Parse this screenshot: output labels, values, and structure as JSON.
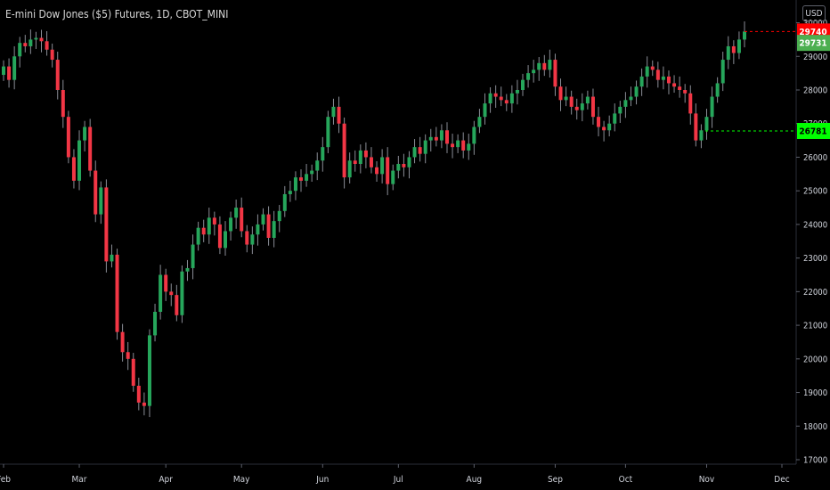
{
  "chart": {
    "title": "E-mini Dow Jones ($5) Futures, 1D, CBOT_MINI",
    "currency_button": "USD"
  },
  "colors": {
    "background": "#000000",
    "up_candle": "#26a65b",
    "down_candle": "#f23645",
    "last_price_badge": "#ff0000",
    "high_badge": "#4caf50",
    "marker_badge": "#00ff00",
    "axis_text": "#d1d4dc"
  },
  "chart_data": {
    "type": "candlestick",
    "title": "E-mini Dow Jones ($5) Futures, 1D, CBOT_MINI",
    "xlabel": "",
    "ylabel": "",
    "ylim": [
      17000,
      30200
    ],
    "y_ticks": [
      17000,
      18000,
      19000,
      20000,
      21000,
      22000,
      23000,
      24000,
      25000,
      26000,
      27000,
      28000,
      29000,
      30000
    ],
    "x_ticks": [
      "Feb",
      "Mar",
      "Apr",
      "May",
      "Jun",
      "Jul",
      "Aug",
      "Sep",
      "Oct",
      "Nov",
      "Dec"
    ],
    "grid": false,
    "legend": "none",
    "price_badges": [
      {
        "label": "29740",
        "value": 29740,
        "kind": "last-price",
        "dashed_line": true
      },
      {
        "label": "29731",
        "value": 29400,
        "kind": "high"
      },
      {
        "label": "26781",
        "value": 26781,
        "kind": "marker",
        "dashed_line": true
      }
    ],
    "series": [
      {
        "points": [
          [
            "Feb",
            28700
          ],
          [
            "Feb",
            28300
          ],
          [
            "Feb",
            29000
          ],
          [
            "Feb",
            29400
          ],
          [
            "Feb",
            29300
          ],
          [
            "Feb",
            29500
          ],
          [
            "Feb",
            29550
          ],
          [
            "Feb",
            29450
          ],
          [
            "Feb",
            29200
          ],
          [
            "Feb",
            28900
          ],
          [
            "Feb",
            28000
          ],
          [
            "Feb",
            27200
          ],
          [
            "Feb",
            26000
          ],
          [
            "Feb",
            25300
          ],
          [
            "Mar",
            26500
          ],
          [
            "Mar",
            26900
          ],
          [
            "Mar",
            25600
          ],
          [
            "Mar",
            24300
          ],
          [
            "Mar",
            25100
          ],
          [
            "Mar",
            22900
          ],
          [
            "Mar",
            23100
          ],
          [
            "Mar",
            20800
          ],
          [
            "Mar",
            20200
          ],
          [
            "Mar",
            20000
          ],
          [
            "Mar",
            19200
          ],
          [
            "Mar",
            18700
          ],
          [
            "Mar",
            18600
          ],
          [
            "Mar",
            20700
          ],
          [
            "Mar",
            21400
          ],
          [
            "Mar",
            22500
          ],
          [
            "Apr",
            22000
          ],
          [
            "Apr",
            21900
          ],
          [
            "Apr",
            21300
          ],
          [
            "Apr",
            22600
          ],
          [
            "Apr",
            22700
          ],
          [
            "Apr",
            23400
          ],
          [
            "Apr",
            23900
          ],
          [
            "Apr",
            23700
          ],
          [
            "Apr",
            24200
          ],
          [
            "Apr",
            24000
          ],
          [
            "Apr",
            23300
          ],
          [
            "Apr",
            23800
          ],
          [
            "Apr",
            24200
          ],
          [
            "Apr",
            24500
          ],
          [
            "May",
            23800
          ],
          [
            "May",
            23400
          ],
          [
            "May",
            23700
          ],
          [
            "May",
            24000
          ],
          [
            "May",
            24300
          ],
          [
            "May",
            23600
          ],
          [
            "May",
            24100
          ],
          [
            "May",
            24400
          ],
          [
            "May",
            24900
          ],
          [
            "May",
            25000
          ],
          [
            "May",
            25400
          ],
          [
            "May",
            25300
          ],
          [
            "May",
            25500
          ],
          [
            "May",
            25600
          ],
          [
            "May",
            25900
          ],
          [
            "Jun",
            26300
          ],
          [
            "Jun",
            27200
          ],
          [
            "Jun",
            27500
          ],
          [
            "Jun",
            27000
          ],
          [
            "Jun",
            25400
          ],
          [
            "Jun",
            25900
          ],
          [
            "Jun",
            25800
          ],
          [
            "Jun",
            26200
          ],
          [
            "Jun",
            26000
          ],
          [
            "Jun",
            25700
          ],
          [
            "Jun",
            25500
          ],
          [
            "Jun",
            26000
          ],
          [
            "Jun",
            25200
          ],
          [
            "Jun",
            25600
          ],
          [
            "Jul",
            25800
          ],
          [
            "Jul",
            25700
          ],
          [
            "Jul",
            26000
          ],
          [
            "Jul",
            26300
          ],
          [
            "Jul",
            26100
          ],
          [
            "Jul",
            26500
          ],
          [
            "Jul",
            26600
          ],
          [
            "Jul",
            26500
          ],
          [
            "Jul",
            26800
          ],
          [
            "Jul",
            26400
          ],
          [
            "Jul",
            26300
          ],
          [
            "Jul",
            26500
          ],
          [
            "Jul",
            26200
          ],
          [
            "Jul",
            26400
          ],
          [
            "Aug",
            26900
          ],
          [
            "Aug",
            27200
          ],
          [
            "Aug",
            27600
          ],
          [
            "Aug",
            27900
          ],
          [
            "Aug",
            27800
          ],
          [
            "Aug",
            27700
          ],
          [
            "Aug",
            27600
          ],
          [
            "Aug",
            27900
          ],
          [
            "Aug",
            28000
          ],
          [
            "Aug",
            28300
          ],
          [
            "Aug",
            28500
          ],
          [
            "Aug",
            28600
          ],
          [
            "Aug",
            28800
          ],
          [
            "Aug",
            28600
          ],
          [
            "Aug",
            28900
          ],
          [
            "Sep",
            28100
          ],
          [
            "Sep",
            27700
          ],
          [
            "Sep",
            27800
          ],
          [
            "Sep",
            27500
          ],
          [
            "Sep",
            27400
          ],
          [
            "Sep",
            27600
          ],
          [
            "Sep",
            27800
          ],
          [
            "Sep",
            27200
          ],
          [
            "Sep",
            26900
          ],
          [
            "Sep",
            26800
          ],
          [
            "Sep",
            27000
          ],
          [
            "Sep",
            27300
          ],
          [
            "Sep",
            27500
          ],
          [
            "Oct",
            27700
          ],
          [
            "Oct",
            27800
          ],
          [
            "Oct",
            28100
          ],
          [
            "Oct",
            28400
          ],
          [
            "Oct",
            28700
          ],
          [
            "Oct",
            28600
          ],
          [
            "Oct",
            28300
          ],
          [
            "Oct",
            28400
          ],
          [
            "Oct",
            28200
          ],
          [
            "Oct",
            28100
          ],
          [
            "Oct",
            28000
          ],
          [
            "Oct",
            27900
          ],
          [
            "Oct",
            27300
          ],
          [
            "Oct",
            26500
          ],
          [
            "Oct",
            26800
          ],
          [
            "Nov",
            27200
          ],
          [
            "Nov",
            27800
          ],
          [
            "Nov",
            28200
          ],
          [
            "Nov",
            28900
          ],
          [
            "Nov",
            29300
          ],
          [
            "Nov",
            29100
          ],
          [
            "Nov",
            29500
          ],
          [
            "Nov",
            29740
          ]
        ]
      }
    ]
  }
}
